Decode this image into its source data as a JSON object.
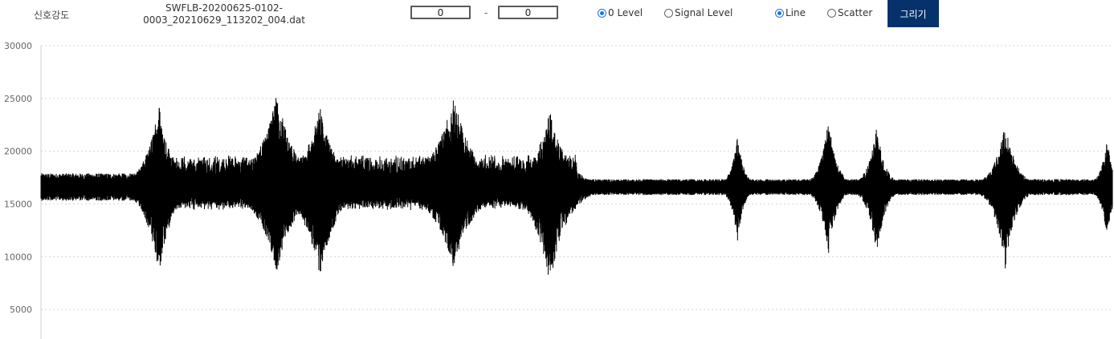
{
  "toolbar": {
    "label": "신호강도",
    "file_name": "SWFLB-20200625-0102-0003_20210629_113202_004.dat",
    "range_start": "0",
    "range_separator": "-",
    "range_end": "0",
    "level_options": [
      {
        "label": "0 Level",
        "selected": true
      },
      {
        "label": "Signal Level",
        "selected": false
      }
    ],
    "mode_options": [
      {
        "label": "Line",
        "selected": true
      },
      {
        "label": "Scatter",
        "selected": false
      }
    ],
    "draw_button_label": "그리기",
    "accent_color": "#06326b",
    "radio_color": "#1a73e8"
  },
  "chart_data": {
    "type": "line",
    "title": "",
    "xlabel": "",
    "ylabel": "",
    "ylim": [
      2200,
      30000
    ],
    "yticks": [
      {
        "value": 30000,
        "label": "30000"
      },
      {
        "value": 25000,
        "label": "25000"
      },
      {
        "value": 20000,
        "label": "20000"
      },
      {
        "value": 15000,
        "label": "15000"
      },
      {
        "value": 10000,
        "label": "10000"
      },
      {
        "value": 5000,
        "label": "5000"
      }
    ],
    "grid": "horizontal-dotted",
    "series_color": "#000000",
    "baseline": 16600,
    "bursts": [
      {
        "x": 0.11,
        "max": 24700,
        "min": 7800,
        "width": 0.012
      },
      {
        "x": 0.22,
        "max": 25500,
        "min": 8500,
        "width": 0.018
      },
      {
        "x": 0.26,
        "max": 24400,
        "min": 8000,
        "width": 0.016
      },
      {
        "x": 0.385,
        "max": 25200,
        "min": 8900,
        "width": 0.02
      },
      {
        "x": 0.475,
        "max": 23900,
        "min": 7400,
        "width": 0.016
      },
      {
        "x": 0.65,
        "max": 21700,
        "min": 11400,
        "width": 0.006
      },
      {
        "x": 0.735,
        "max": 23000,
        "min": 10200,
        "width": 0.008
      },
      {
        "x": 0.78,
        "max": 22400,
        "min": 9900,
        "width": 0.008
      },
      {
        "x": 0.9,
        "max": 23000,
        "min": 8800,
        "width": 0.01
      },
      {
        "x": 0.995,
        "max": 21200,
        "min": 11800,
        "width": 0.006
      }
    ]
  }
}
